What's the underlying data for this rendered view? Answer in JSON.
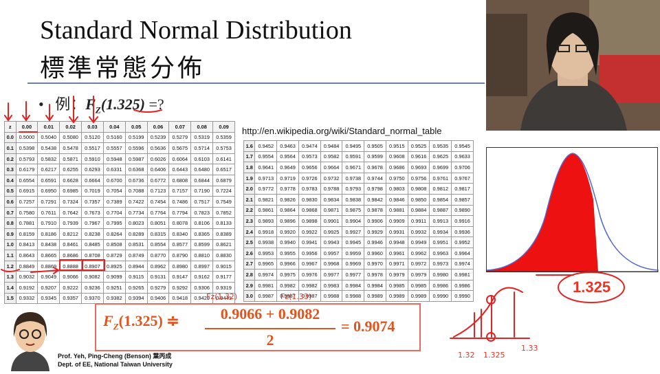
{
  "slide": {
    "title_en": "Standard Normal Distribution",
    "title_zh": "標準常態分佈",
    "bullet_prefix": "例：",
    "bullet_fz": "F",
    "bullet_sub": "Z",
    "bullet_arg": "(1.325)",
    "bullet_eq": " =?",
    "url": "http://en.wikipedia.org/wiki/Standard_normal_table"
  },
  "table_headers": [
    "z",
    "0.00",
    "0.01",
    "0.02",
    "0.03",
    "0.04",
    "0.05",
    "0.06",
    "0.07",
    "0.08",
    "0.09"
  ],
  "table_left_rows": [
    [
      "0.0",
      "0.5000",
      "0.5040",
      "0.5080",
      "0.5120",
      "0.5160",
      "0.5199",
      "0.5239",
      "0.5279",
      "0.5319",
      "0.5359"
    ],
    [
      "0.1",
      "0.5398",
      "0.5438",
      "0.5478",
      "0.5517",
      "0.5557",
      "0.5596",
      "0.5636",
      "0.5675",
      "0.5714",
      "0.5753"
    ],
    [
      "0.2",
      "0.5793",
      "0.5832",
      "0.5871",
      "0.5910",
      "0.5948",
      "0.5987",
      "0.6026",
      "0.6064",
      "0.6103",
      "0.6141"
    ],
    [
      "0.3",
      "0.6179",
      "0.6217",
      "0.6255",
      "0.6293",
      "0.6331",
      "0.6368",
      "0.6406",
      "0.6443",
      "0.6480",
      "0.6517"
    ],
    [
      "0.4",
      "0.6554",
      "0.6591",
      "0.6628",
      "0.6664",
      "0.6700",
      "0.6736",
      "0.6772",
      "0.6808",
      "0.6844",
      "0.6879"
    ],
    [
      "0.5",
      "0.6915",
      "0.6950",
      "0.6985",
      "0.7019",
      "0.7054",
      "0.7088",
      "0.7123",
      "0.7157",
      "0.7190",
      "0.7224"
    ],
    [
      "0.6",
      "0.7257",
      "0.7291",
      "0.7324",
      "0.7357",
      "0.7389",
      "0.7422",
      "0.7454",
      "0.7486",
      "0.7517",
      "0.7549"
    ],
    [
      "0.7",
      "0.7580",
      "0.7611",
      "0.7642",
      "0.7673",
      "0.7704",
      "0.7734",
      "0.7764",
      "0.7794",
      "0.7823",
      "0.7852"
    ],
    [
      "0.8",
      "0.7881",
      "0.7910",
      "0.7939",
      "0.7967",
      "0.7995",
      "0.8023",
      "0.8051",
      "0.8078",
      "0.8106",
      "0.8133"
    ],
    [
      "0.9",
      "0.8159",
      "0.8186",
      "0.8212",
      "0.8238",
      "0.8264",
      "0.8289",
      "0.8315",
      "0.8340",
      "0.8365",
      "0.8389"
    ],
    [
      "1.0",
      "0.8413",
      "0.8438",
      "0.8461",
      "0.8485",
      "0.8508",
      "0.8531",
      "0.8554",
      "0.8577",
      "0.8599",
      "0.8621"
    ],
    [
      "1.1",
      "0.8643",
      "0.8665",
      "0.8686",
      "0.8708",
      "0.8729",
      "0.8749",
      "0.8770",
      "0.8790",
      "0.8810",
      "0.8830"
    ],
    [
      "1.2",
      "0.8849",
      "0.8869",
      "0.8888",
      "0.8907",
      "0.8925",
      "0.8944",
      "0.8962",
      "0.8980",
      "0.8997",
      "0.9015"
    ],
    [
      "1.3",
      "0.9032",
      "0.9049",
      "0.9066",
      "0.9082",
      "0.9099",
      "0.9115",
      "0.9131",
      "0.9147",
      "0.9162",
      "0.9177"
    ],
    [
      "1.4",
      "0.9192",
      "0.9207",
      "0.9222",
      "0.9236",
      "0.9251",
      "0.9265",
      "0.9279",
      "0.9292",
      "0.9306",
      "0.9319"
    ],
    [
      "1.5",
      "0.9332",
      "0.9345",
      "0.9357",
      "0.9370",
      "0.9382",
      "0.9394",
      "0.9406",
      "0.9418",
      "0.9429",
      "0.9441"
    ]
  ],
  "table_right_rows": [
    [
      "1.6",
      "0.9452",
      "0.9463",
      "0.9474",
      "0.9484",
      "0.9495",
      "0.9505",
      "0.9515",
      "0.9525",
      "0.9535",
      "0.9545"
    ],
    [
      "1.7",
      "0.9554",
      "0.9564",
      "0.9573",
      "0.9582",
      "0.9591",
      "0.9599",
      "0.9608",
      "0.9616",
      "0.9625",
      "0.9633"
    ],
    [
      "1.8",
      "0.9641",
      "0.9649",
      "0.9656",
      "0.9664",
      "0.9671",
      "0.9678",
      "0.9686",
      "0.9693",
      "0.9699",
      "0.9706"
    ],
    [
      "1.9",
      "0.9713",
      "0.9719",
      "0.9726",
      "0.9732",
      "0.9738",
      "0.9744",
      "0.9750",
      "0.9756",
      "0.9761",
      "0.9767"
    ],
    [
      "2.0",
      "0.9772",
      "0.9778",
      "0.9783",
      "0.9788",
      "0.9793",
      "0.9798",
      "0.9803",
      "0.9808",
      "0.9812",
      "0.9817"
    ],
    [
      "2.1",
      "0.9821",
      "0.9826",
      "0.9830",
      "0.9834",
      "0.9838",
      "0.9842",
      "0.9846",
      "0.9850",
      "0.9854",
      "0.9857"
    ],
    [
      "2.2",
      "0.9861",
      "0.9864",
      "0.9868",
      "0.9871",
      "0.9875",
      "0.9878",
      "0.9881",
      "0.9884",
      "0.9887",
      "0.9890"
    ],
    [
      "2.3",
      "0.9893",
      "0.9896",
      "0.9898",
      "0.9901",
      "0.9904",
      "0.9906",
      "0.9909",
      "0.9911",
      "0.9913",
      "0.9916"
    ],
    [
      "2.4",
      "0.9918",
      "0.9920",
      "0.9922",
      "0.9925",
      "0.9927",
      "0.9929",
      "0.9931",
      "0.9932",
      "0.9934",
      "0.9936"
    ],
    [
      "2.5",
      "0.9938",
      "0.9940",
      "0.9941",
      "0.9943",
      "0.9945",
      "0.9946",
      "0.9948",
      "0.9949",
      "0.9951",
      "0.9952"
    ],
    [
      "2.6",
      "0.9953",
      "0.9955",
      "0.9956",
      "0.9957",
      "0.9959",
      "0.9960",
      "0.9961",
      "0.9962",
      "0.9963",
      "0.9964"
    ],
    [
      "2.7",
      "0.9965",
      "0.9966",
      "0.9967",
      "0.9968",
      "0.9969",
      "0.9970",
      "0.9971",
      "0.9972",
      "0.9973",
      "0.9974"
    ],
    [
      "2.8",
      "0.9974",
      "0.9975",
      "0.9976",
      "0.9977",
      "0.9977",
      "0.9978",
      "0.9979",
      "0.9979",
      "0.9980",
      "0.9981"
    ],
    [
      "2.9",
      "0.9981",
      "0.9982",
      "0.9982",
      "0.9983",
      "0.9984",
      "0.9984",
      "0.9985",
      "0.9985",
      "0.9986",
      "0.9986"
    ],
    [
      "3.0",
      "0.9987",
      "0.9987",
      "0.9987",
      "0.9988",
      "0.9988",
      "0.9989",
      "0.9989",
      "0.9989",
      "0.9990",
      "0.9990"
    ]
  ],
  "formula": {
    "lhs": "F",
    "lhs_sub": "Z",
    "lhs_arg": "(1.325) ≑",
    "numerator": "0.9066 + 0.9082",
    "denominator": "2",
    "result": "= 0.9074"
  },
  "annotations": {
    "fz132": "Fz(1.32)",
    "fz133": "Fz(1.33)",
    "z_label": "1.325",
    "tick_132": "1.32",
    "tick_1325": "1.325",
    "tick_133": "1.33"
  },
  "professor": {
    "line1": "Prof. Yeh, Ping-Cheng (Benson) 葉丙成",
    "line2": "Dept. of EE,  National Taiwan University"
  },
  "colors": {
    "accent_red": "#e32222",
    "formula_orange": "#e0541e",
    "curve_blue": "#5566cc"
  }
}
